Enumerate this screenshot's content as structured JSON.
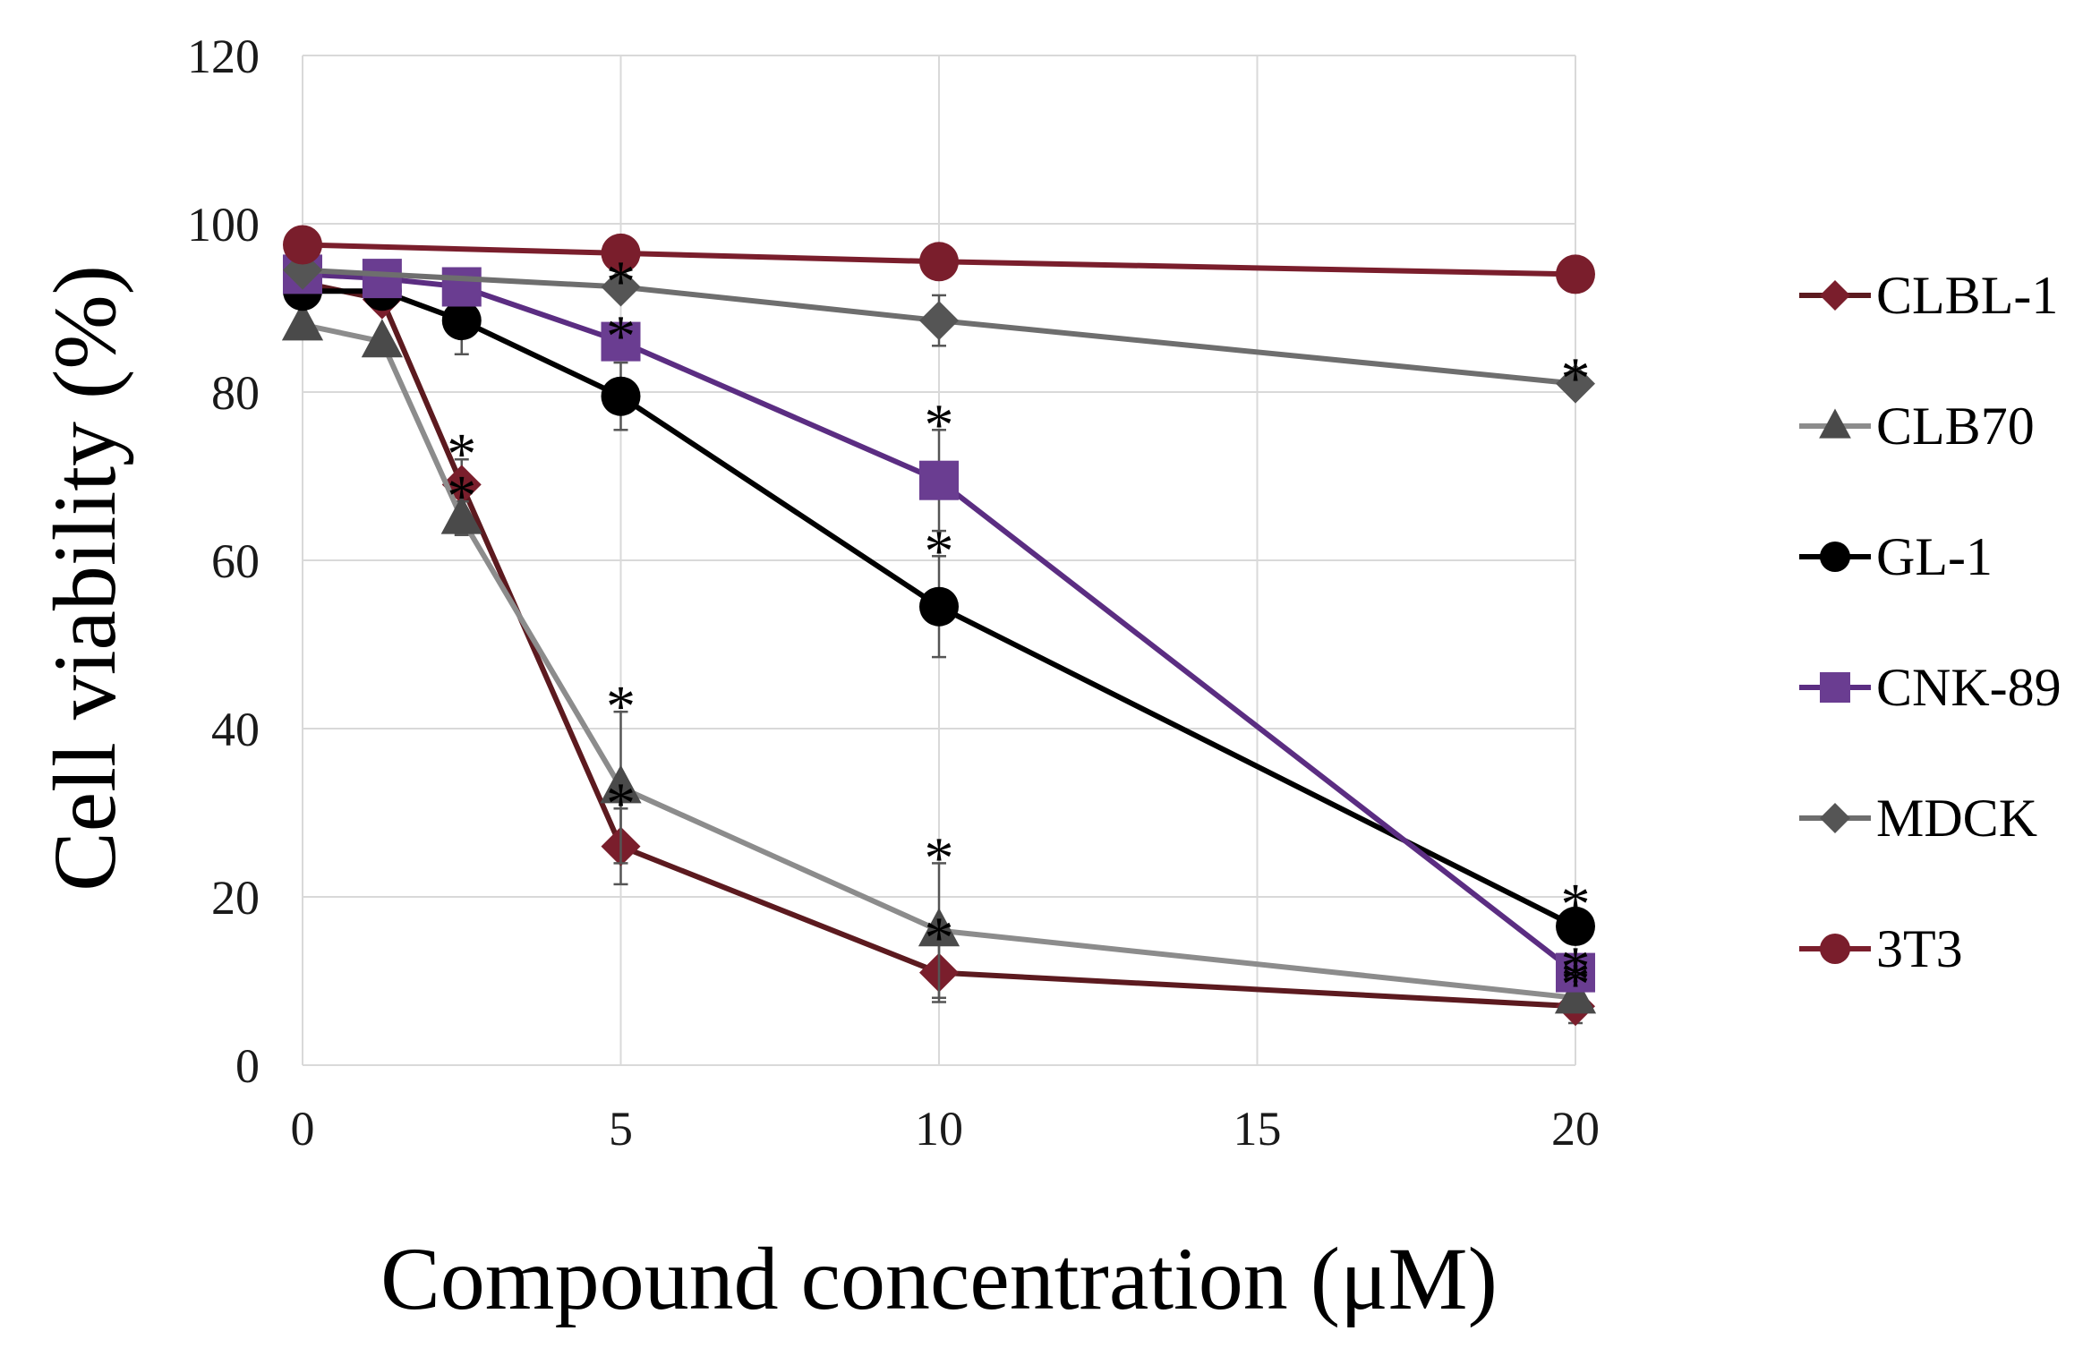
{
  "chart_data": {
    "type": "line",
    "title": "",
    "xlabel": "Compound concentration (μM)",
    "ylabel": "Cell viability (%)",
    "xlim": [
      0,
      20
    ],
    "ylim": [
      0,
      120
    ],
    "xticks": [
      0,
      5,
      10,
      15,
      20
    ],
    "yticks": [
      0,
      20,
      40,
      60,
      80,
      100,
      120
    ],
    "grid": true,
    "legend_position": "right",
    "significance_marker": "*",
    "series": [
      {
        "name": "CLBL-1",
        "marker": "diamond",
        "color": "#5c1a1f",
        "marker_color": "#7a1e2c",
        "x": [
          0,
          1.25,
          2.5,
          5,
          10,
          20
        ],
        "y": [
          93,
          91,
          69,
          26,
          11,
          7
        ],
        "err": [
          0,
          0,
          3,
          4.5,
          3.5,
          2
        ],
        "significant": [
          false,
          false,
          true,
          true,
          true,
          true
        ]
      },
      {
        "name": "CLB70",
        "marker": "triangle",
        "color": "#8c8c8c",
        "marker_color": "#4a4a4a",
        "x": [
          0,
          1.25,
          2.5,
          5,
          10,
          20
        ],
        "y": [
          88,
          86,
          65,
          33,
          16,
          8
        ],
        "err": [
          0,
          0,
          2,
          9,
          8,
          1.5
        ],
        "significant": [
          false,
          false,
          true,
          true,
          true,
          true
        ]
      },
      {
        "name": "GL-1",
        "marker": "circle",
        "color": "#000000",
        "marker_color": "#000000",
        "x": [
          0,
          1.25,
          2.5,
          5,
          10,
          20
        ],
        "y": [
          92,
          92,
          88.5,
          79.5,
          54.5,
          16.5
        ],
        "err": [
          0,
          0,
          4,
          4,
          6,
          2
        ],
        "significant": [
          false,
          false,
          false,
          false,
          true,
          true
        ]
      },
      {
        "name": "CNK-89",
        "marker": "square",
        "color": "#5b2d82",
        "marker_color": "#6a3d91",
        "x": [
          0,
          1.25,
          2.5,
          5,
          10,
          20
        ],
        "y": [
          94,
          93.5,
          92.5,
          86,
          69.5,
          11
        ],
        "err": [
          0,
          0,
          0,
          0,
          6,
          0
        ],
        "significant": [
          false,
          false,
          false,
          true,
          true,
          true
        ]
      },
      {
        "name": "MDCK",
        "marker": "diamond",
        "color": "#6e6e6e",
        "marker_color": "#555555",
        "x": [
          0,
          5,
          10,
          20
        ],
        "y": [
          94.5,
          92.5,
          88.5,
          81
        ],
        "err": [
          0,
          0,
          3,
          0
        ],
        "significant": [
          false,
          true,
          false,
          true
        ]
      },
      {
        "name": "3T3",
        "marker": "circle",
        "color": "#7a1e2c",
        "marker_color": "#7a1e2c",
        "x": [
          0,
          5,
          10,
          20
        ],
        "y": [
          97.5,
          96.5,
          95.5,
          94
        ],
        "err": [
          0,
          0,
          0,
          0
        ],
        "significant": [
          false,
          false,
          false,
          false
        ]
      }
    ]
  }
}
